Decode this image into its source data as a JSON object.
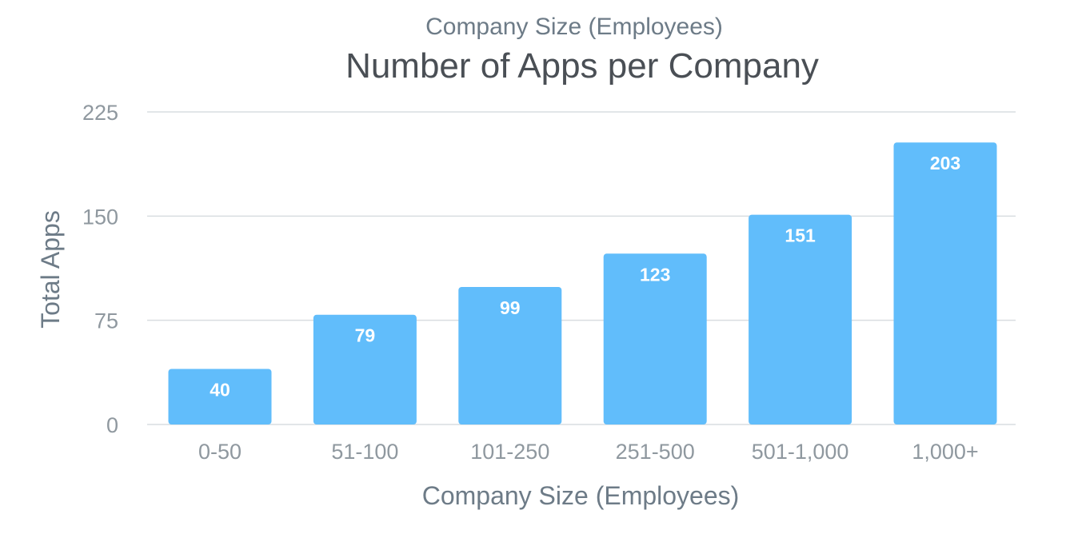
{
  "chart_data": {
    "type": "bar",
    "subtitle": "Company Size (Employees)",
    "title": "Number of Apps per Company",
    "xlabel": "Company Size (Employees)",
    "ylabel": "Total Apps",
    "categories": [
      "0-50",
      "51-100",
      "101-250",
      "251-500",
      "501-1,000",
      "1,000+"
    ],
    "values": [
      40,
      79,
      99,
      123,
      151,
      203
    ],
    "data_labels": [
      "40",
      "79",
      "99",
      "123",
      "151",
      "203"
    ],
    "yticks": [
      0,
      75,
      150,
      225
    ],
    "ytick_labels": [
      "0",
      "75",
      "150",
      "225"
    ],
    "ylim": [
      0,
      225
    ],
    "grid": true,
    "legend": "none",
    "colors": {
      "bar": "#61bdfb",
      "grid": "#d9dde0",
      "tick_text": "#8f989f",
      "axis_label": "#6d7b87",
      "title": "#4a4f55",
      "data_label": "#ffffff"
    }
  }
}
